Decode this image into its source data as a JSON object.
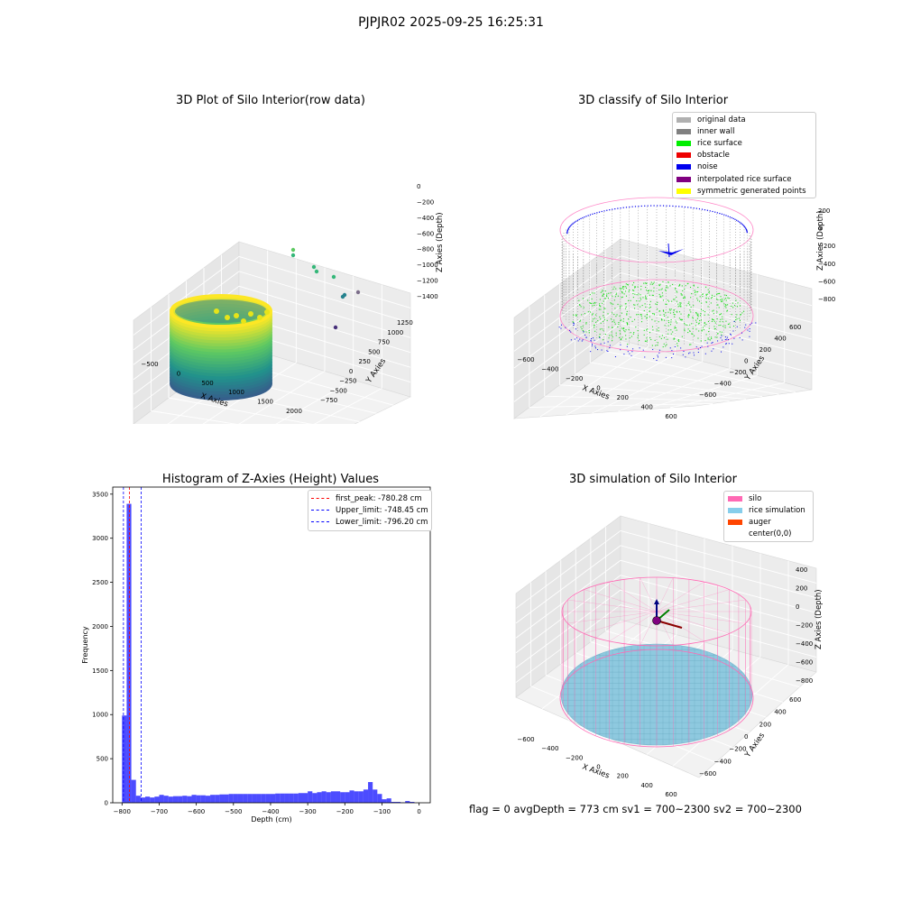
{
  "suptitle": "PJPJR02 2025-09-25 16:25:31",
  "footer": "flag = 0     avgDepth = 773 cm  sv1 = 700~2300  sv2 = 700~2300",
  "chart_data": [
    {
      "type": "scatter3d",
      "title": "3D Plot of Silo Interior(row data)",
      "xlabel": "X Axies",
      "ylabel": "Y Axies",
      "zlabel": "Z Axies (Depth)",
      "x_ticks": [
        "−500",
        "0",
        "500",
        "1000",
        "1500",
        "2000"
      ],
      "y_ticks": [
        "−750",
        "−500",
        "−250",
        "0",
        "250",
        "500",
        "750",
        "1000",
        "1250"
      ],
      "z_ticks": [
        "0",
        "−200",
        "−400",
        "−600",
        "−800",
        "−1000",
        "−1200",
        "−1400"
      ],
      "colormap": "viridis (by depth)",
      "description_points": "Cylindrical point cloud of silo wall centered near (0,0), depth from about -400 to -1250; scattered outliers out to x≈2000",
      "grid": true
    },
    {
      "type": "scatter3d",
      "title": "3D classify of Silo Interior",
      "xlabel": "X Axies",
      "ylabel": "Y Axies",
      "zlabel": "Z Axies (Depth)",
      "x_ticks": [
        "−600",
        "−400",
        "−200",
        "0",
        "200",
        "400",
        "600"
      ],
      "y_ticks": [
        "−600",
        "−400",
        "−200",
        "0",
        "200",
        "400",
        "600"
      ],
      "z_ticks": [
        "200",
        "0",
        "−200",
        "−400",
        "−600",
        "−800"
      ],
      "legend": [
        {
          "label": "original data",
          "color": "#b0b0b0"
        },
        {
          "label": "inner wall",
          "color": "#808080"
        },
        {
          "label": "rice surface",
          "color": "#00ee00"
        },
        {
          "label": "obstacle",
          "color": "#ee0000"
        },
        {
          "label": "noise",
          "color": "#0000ee"
        },
        {
          "label": "interpolated rice surface",
          "color": "#800080"
        },
        {
          "label": "symmetric generated points",
          "color": "#ffff00"
        }
      ],
      "legend_position": "top-right",
      "grid": true
    },
    {
      "type": "bar",
      "title": "Histogram of Z-Axies (Height) Values",
      "xlabel": "Depth (cm)",
      "ylabel": "Frequency",
      "xlim": [
        -825,
        30
      ],
      "ylim": [
        0,
        3580
      ],
      "x_ticks": [
        -800,
        -700,
        -600,
        -500,
        -400,
        -300,
        -200,
        -100,
        0
      ],
      "y_ticks": [
        0,
        500,
        1000,
        1500,
        2000,
        2500,
        3000,
        3500
      ],
      "bin_width": 12.5,
      "bins_start": [
        -800,
        -787.5,
        -775,
        -762.5,
        -750,
        -737.5,
        -725,
        -712.5,
        -700,
        -687.5,
        -675,
        -662.5,
        -650,
        -637.5,
        -625,
        -612.5,
        -600,
        -587.5,
        -575,
        -562.5,
        -550,
        -537.5,
        -525,
        -512.5,
        -500,
        -487.5,
        -475,
        -462.5,
        -450,
        -437.5,
        -425,
        -412.5,
        -400,
        -387.5,
        -375,
        -362.5,
        -350,
        -337.5,
        -325,
        -312.5,
        -300,
        -287.5,
        -275,
        -262.5,
        -250,
        -237.5,
        -225,
        -212.5,
        -200,
        -187.5,
        -175,
        -162.5,
        -150,
        -137.5,
        -125,
        -112.5,
        -100,
        -87.5,
        -75,
        -62.5,
        -50,
        -37.5,
        -25,
        -12.5
      ],
      "values": [
        990,
        3390,
        260,
        80,
        60,
        70,
        60,
        70,
        90,
        80,
        70,
        75,
        75,
        80,
        75,
        90,
        85,
        85,
        80,
        90,
        90,
        95,
        95,
        100,
        100,
        100,
        100,
        100,
        100,
        100,
        100,
        100,
        100,
        105,
        105,
        105,
        105,
        105,
        110,
        110,
        130,
        110,
        120,
        130,
        120,
        130,
        130,
        120,
        120,
        140,
        130,
        130,
        150,
        235,
        150,
        100,
        40,
        50,
        10,
        10,
        5,
        20,
        10,
        0
      ],
      "bar_color": "#0000ff",
      "reference_lines": [
        {
          "label": "first_peak: -780.28 cm",
          "x": -780.28,
          "color": "#ff0000",
          "style": "dashed"
        },
        {
          "label": "Upper_limit: -748.45 cm",
          "x": -748.45,
          "color": "#0000ff",
          "style": "dashed"
        },
        {
          "label": "Lower_limit: -796.20 cm",
          "x": -796.2,
          "color": "#0000ff",
          "style": "dashed"
        }
      ],
      "legend_position": "top-right"
    },
    {
      "type": "surface3d",
      "title": "3D simulation of Silo Interior",
      "xlabel": "X Axies",
      "ylabel": "Y Axies",
      "zlabel": "Z Axies (Depth)",
      "x_ticks": [
        "−600",
        "−400",
        "−200",
        "0",
        "200",
        "400",
        "600"
      ],
      "y_ticks": [
        "−600",
        "−400",
        "−200",
        "0",
        "200",
        "400",
        "600"
      ],
      "z_ticks": [
        "400",
        "200",
        "0",
        "−200",
        "−400",
        "−600",
        "−800"
      ],
      "legend": [
        {
          "label": "silo",
          "color": "#ff69b4"
        },
        {
          "label": "rice simulation",
          "color": "#87ceeb"
        },
        {
          "label": "auger",
          "color": "#ff4500"
        },
        {
          "label": "center(0,0)",
          "color": ""
        }
      ],
      "legend_position": "top-right",
      "grid": true
    }
  ]
}
